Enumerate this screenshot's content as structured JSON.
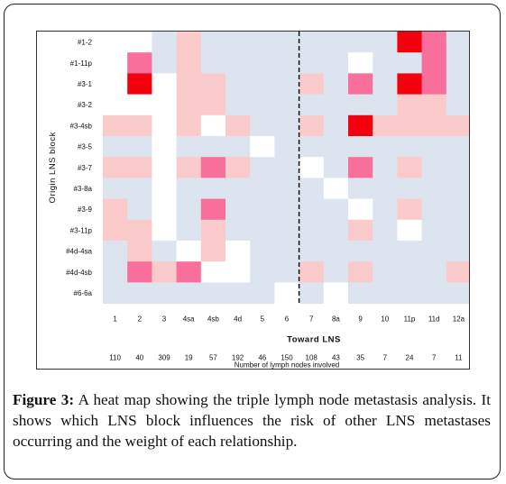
{
  "chart_data": {
    "type": "heatmap",
    "ylabel": "Origin LNS block",
    "xlabel": "Toward LNS",
    "row_labels": [
      "#1-2",
      "#1-11p",
      "#3-1",
      "#3-2",
      "#3-4sb",
      "#3-5",
      "#3-7",
      "#3-8a",
      "#3-9",
      "#3-11p",
      "#4d-4sa",
      "#4d-4sb",
      "#6-6a"
    ],
    "column_labels": [
      "1",
      "2",
      "3",
      "4sa",
      "4sb",
      "4d",
      "5",
      "6",
      "7",
      "8a",
      "9",
      "10",
      "11p",
      "11d",
      "12a"
    ],
    "counts_label": "Number of lymph nodes involved",
    "counts": [
      "110",
      "40",
      "309",
      "19",
      "57",
      "192",
      "46",
      "150",
      "108",
      "43",
      "35",
      "7",
      "24",
      "7",
      "11"
    ],
    "divider_after_column": "6",
    "level_scale": [
      "white",
      "light blue",
      "light pink",
      "pink",
      "red"
    ],
    "level_colors": [
      "#ffffff",
      "#dce5ef",
      "#fbcbcb",
      "#f76f9a",
      "#f5000e"
    ],
    "levels": [
      [
        0,
        0,
        1,
        2,
        1,
        1,
        1,
        1,
        1,
        1,
        1,
        1,
        4,
        3,
        1
      ],
      [
        0,
        3,
        1,
        2,
        1,
        1,
        1,
        1,
        1,
        1,
        0,
        1,
        1,
        3,
        1
      ],
      [
        0,
        4,
        0,
        2,
        2,
        1,
        1,
        1,
        2,
        1,
        3,
        1,
        4,
        3,
        1
      ],
      [
        0,
        0,
        0,
        2,
        2,
        1,
        1,
        1,
        1,
        1,
        1,
        1,
        2,
        2,
        1
      ],
      [
        2,
        2,
        0,
        2,
        0,
        2,
        1,
        1,
        2,
        1,
        4,
        2,
        2,
        2,
        2
      ],
      [
        1,
        1,
        0,
        1,
        1,
        1,
        0,
        1,
        1,
        1,
        1,
        1,
        1,
        1,
        1
      ],
      [
        2,
        2,
        0,
        2,
        3,
        2,
        1,
        1,
        0,
        1,
        3,
        1,
        2,
        1,
        1
      ],
      [
        1,
        1,
        0,
        1,
        1,
        1,
        1,
        1,
        1,
        0,
        1,
        1,
        1,
        1,
        1
      ],
      [
        2,
        1,
        0,
        1,
        3,
        1,
        1,
        1,
        1,
        1,
        0,
        1,
        2,
        1,
        1
      ],
      [
        2,
        2,
        0,
        1,
        2,
        1,
        1,
        1,
        1,
        1,
        2,
        1,
        0,
        1,
        1
      ],
      [
        1,
        2,
        1,
        0,
        2,
        0,
        1,
        1,
        1,
        1,
        1,
        1,
        1,
        1,
        1
      ],
      [
        1,
        3,
        2,
        3,
        0,
        0,
        1,
        1,
        2,
        1,
        2,
        1,
        1,
        1,
        2
      ],
      [
        1,
        1,
        1,
        1,
        1,
        1,
        1,
        0,
        1,
        0,
        1,
        1,
        1,
        1,
        1
      ]
    ]
  },
  "caption": {
    "lead": "Figure 3:",
    "text": " A heat map showing the triple lymph node metastasis analysis. It shows which LNS block influences the risk of other LNS metastases occurring and the weight of each relationship."
  }
}
